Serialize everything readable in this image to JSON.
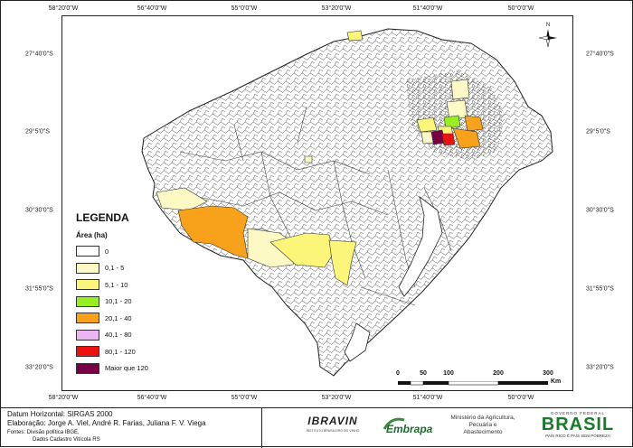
{
  "map": {
    "lon_ticks": [
      "58°20'0\"W",
      "56°40'0\"W",
      "55°0'0\"W",
      "53°20'0\"W",
      "51°40'0\"W",
      "50°0'0\"W"
    ],
    "lat_ticks": [
      "27°40'0\"S",
      "29°5'0\"S",
      "30°30'0\"S",
      "31°55'0\"S",
      "33°20'0\"S"
    ],
    "north_label": "N"
  },
  "legend": {
    "title": "LEGENDA",
    "subtitle": "Área (ha)",
    "items": [
      {
        "label": "0",
        "color": "#ffffff"
      },
      {
        "label": "0,1 - 5",
        "color": "#fdf9c4"
      },
      {
        "label": "5,1 - 10",
        "color": "#fbf57a"
      },
      {
        "label": "10,1 - 20",
        "color": "#99ee22"
      },
      {
        "label": "20,1 - 40",
        "color": "#f7a21a"
      },
      {
        "label": "40,1 - 80",
        "color": "#e9b6f2"
      },
      {
        "label": "80,1 - 120",
        "color": "#ee1111"
      },
      {
        "label": "Maior que 120",
        "color": "#770044"
      }
    ]
  },
  "scale_bar": {
    "labels": [
      "0",
      "50",
      "100",
      "200",
      "300"
    ],
    "unit": "Km"
  },
  "footer": {
    "datum": "Datum Horizontal: SIRGAS 2000",
    "authors": "Elaboração: Jorge A. Viel, André R. Farias, Juliana F. V. Viega",
    "sources_line1": "Fontes: Divisão política IBGE,",
    "sources_line2": "Dados Cadastro Vitícola RS",
    "ibravin_name": "IBRAVIN",
    "ibravin_sub": "INSTITUTO BRASILEIRO DO VINHO",
    "embrapa_name": "Embrapa",
    "ministry": "Ministério da Agricultura, Pecuária e Abastecimento",
    "gov_top": "GOVERNO FEDERAL",
    "brasil": "BRASIL",
    "brasil_slogan": "PAÍS RICO É PAÍS SEM POBREZA"
  }
}
